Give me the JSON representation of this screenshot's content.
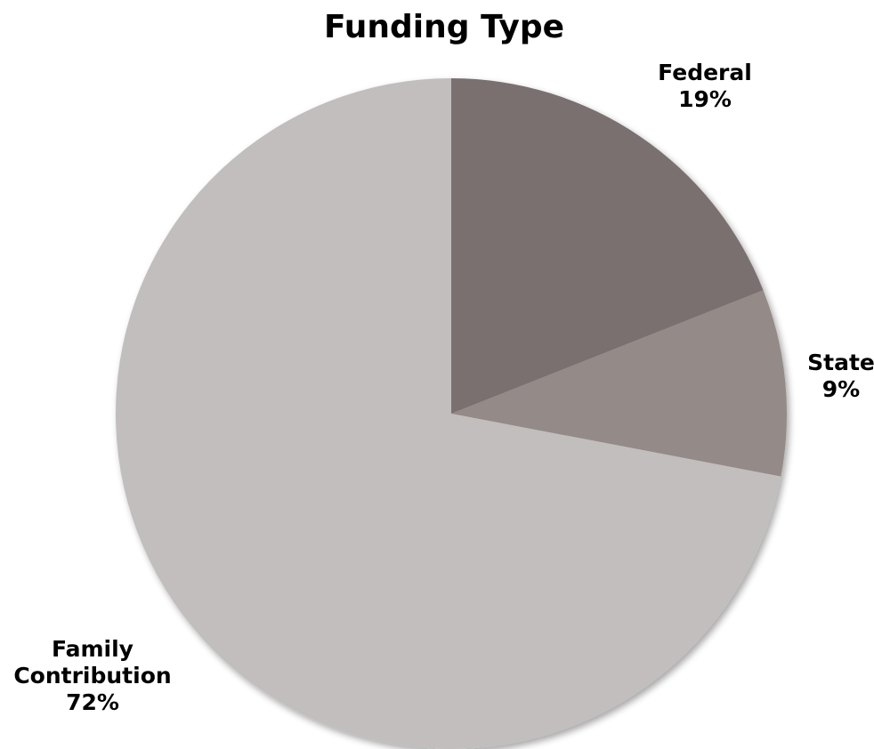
{
  "chart_data": {
    "type": "pie",
    "title": "Funding Type",
    "start_angle_deg": 0,
    "direction": "clockwise",
    "legend": "none",
    "slices": [
      {
        "name": "Federal",
        "value": 19,
        "label_lines": [
          "Federal",
          "19%"
        ],
        "color": "#7a7070"
      },
      {
        "name": "State",
        "value": 9,
        "label_lines": [
          "State",
          "9%"
        ],
        "color": "#948a88"
      },
      {
        "name": "Family Contribution",
        "value": 72,
        "label_lines": [
          "Family",
          "Contribution",
          "72%"
        ],
        "color": "#c1bebd"
      }
    ]
  }
}
